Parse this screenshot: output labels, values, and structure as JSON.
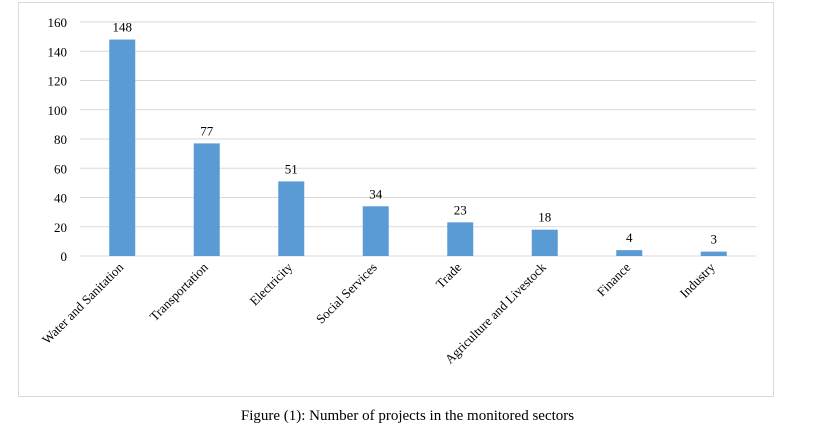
{
  "chart_data": {
    "type": "bar",
    "categories": [
      "Water and Sanitation",
      "Transportation",
      "Electricity",
      "Social Services",
      "Trade",
      "Agriculture and Livestock",
      "Finance",
      "Industry"
    ],
    "values": [
      148,
      77,
      51,
      34,
      23,
      18,
      4,
      3
    ],
    "ylim": [
      0,
      160
    ],
    "yticks": [
      0,
      20,
      40,
      60,
      80,
      100,
      120,
      140,
      160
    ],
    "grid": true,
    "bar_color": "#5b9bd5",
    "grid_color": "#d9d9d9"
  },
  "caption": "Figure (1): Number of projects in the monitored sectors"
}
